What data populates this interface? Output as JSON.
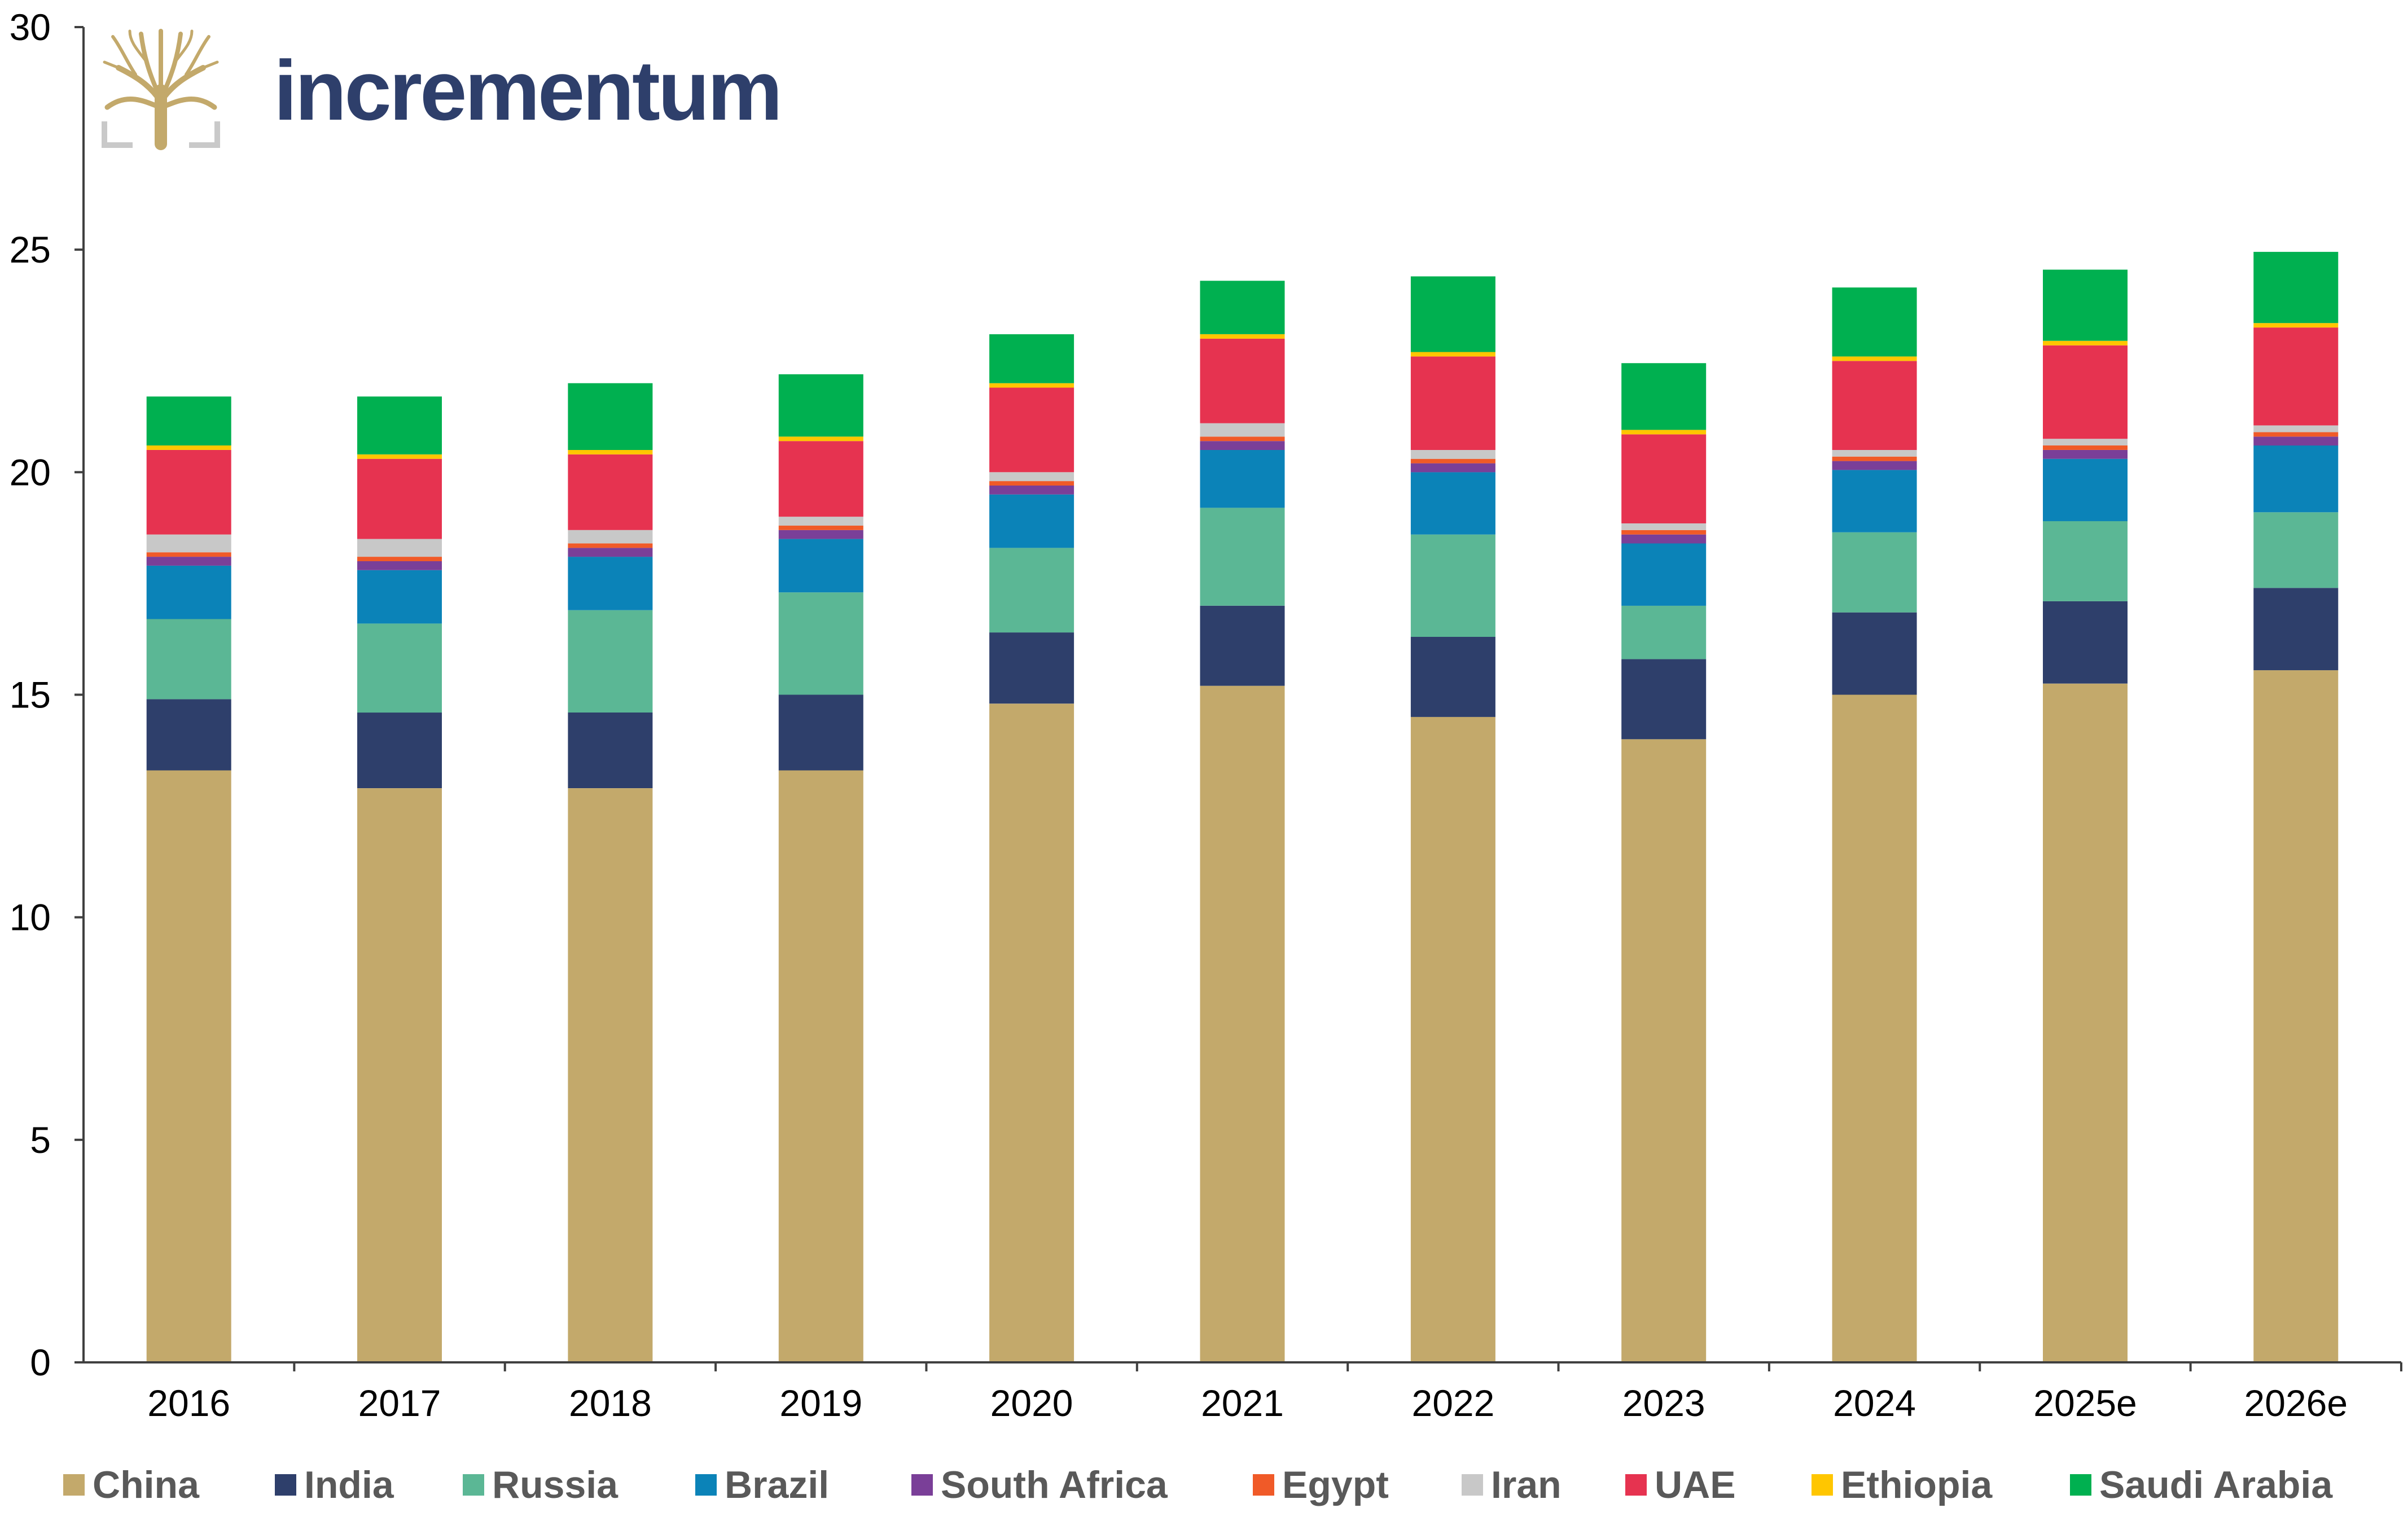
{
  "brand": {
    "name": "incrementum",
    "logo_icon": "tree-logo-icon"
  },
  "colors": {
    "axis": "#404040",
    "tick_text": "#000000",
    "brand_text": "#2e3f6b",
    "logo_gold": "#c3a96b",
    "logo_grey": "#c9c9c9"
  },
  "legend": {
    "items": [
      {
        "label": "China",
        "color": "#c3a96b"
      },
      {
        "label": "India",
        "color": "#2e3f6b"
      },
      {
        "label": "Russia",
        "color": "#5bb795"
      },
      {
        "label": "Brazil",
        "color": "#0b83b8"
      },
      {
        "label": "South Africa",
        "color": "#7a3f98"
      },
      {
        "label": "Egypt",
        "color": "#f05a28"
      },
      {
        "label": "Iran",
        "color": "#c8c8c8"
      },
      {
        "label": "UAE",
        "color": "#e63350"
      },
      {
        "label": "Ethiopia",
        "color": "#ffc600"
      },
      {
        "label": "Saudi Arabia",
        "color": "#00b050"
      }
    ]
  },
  "chart_data": {
    "type": "bar",
    "stacked": true,
    "title": "",
    "xlabel": "",
    "ylabel": "",
    "ylim": [
      0,
      30
    ],
    "yticks": [
      0,
      5,
      10,
      15,
      20,
      25,
      30
    ],
    "grid": false,
    "legend_position": "bottom",
    "categories": [
      "2016",
      "2017",
      "2018",
      "2019",
      "2020",
      "2021",
      "2022",
      "2023",
      "2024",
      "2025e",
      "2026e"
    ],
    "series": [
      {
        "name": "China",
        "color": "#c3a96b",
        "values": [
          13.3,
          12.9,
          12.9,
          13.3,
          14.8,
          15.2,
          14.5,
          14.0,
          15.0,
          15.25,
          15.55
        ]
      },
      {
        "name": "India",
        "color": "#2e3f6b",
        "values": [
          1.6,
          1.7,
          1.7,
          1.7,
          1.6,
          1.8,
          1.8,
          1.8,
          1.85,
          1.85,
          1.85
        ]
      },
      {
        "name": "Russia",
        "color": "#5bb795",
        "values": [
          1.8,
          2.0,
          2.3,
          2.3,
          1.9,
          2.2,
          2.3,
          1.2,
          1.8,
          1.8,
          1.7
        ]
      },
      {
        "name": "Brazil",
        "color": "#0b83b8",
        "values": [
          1.2,
          1.2,
          1.2,
          1.2,
          1.2,
          1.3,
          1.4,
          1.4,
          1.4,
          1.4,
          1.5
        ]
      },
      {
        "name": "South Africa",
        "color": "#7a3f98",
        "values": [
          0.2,
          0.2,
          0.2,
          0.2,
          0.2,
          0.2,
          0.2,
          0.2,
          0.2,
          0.2,
          0.2
        ]
      },
      {
        "name": "Egypt",
        "color": "#f05a28",
        "values": [
          0.1,
          0.1,
          0.1,
          0.1,
          0.1,
          0.1,
          0.1,
          0.1,
          0.1,
          0.1,
          0.1
        ]
      },
      {
        "name": "Iran",
        "color": "#c8c8c8",
        "values": [
          0.4,
          0.4,
          0.3,
          0.2,
          0.2,
          0.3,
          0.2,
          0.15,
          0.15,
          0.15,
          0.15
        ]
      },
      {
        "name": "UAE",
        "color": "#e63350",
        "values": [
          1.9,
          1.8,
          1.7,
          1.7,
          1.9,
          1.9,
          2.1,
          2.0,
          2.0,
          2.1,
          2.2
        ]
      },
      {
        "name": "Ethiopia",
        "color": "#ffc600",
        "values": [
          0.1,
          0.1,
          0.1,
          0.1,
          0.1,
          0.1,
          0.1,
          0.1,
          0.1,
          0.1,
          0.1
        ]
      },
      {
        "name": "Saudi Arabia",
        "color": "#00b050",
        "values": [
          1.1,
          1.3,
          1.5,
          1.4,
          1.1,
          1.2,
          1.7,
          1.5,
          1.55,
          1.6,
          1.6
        ]
      }
    ]
  }
}
